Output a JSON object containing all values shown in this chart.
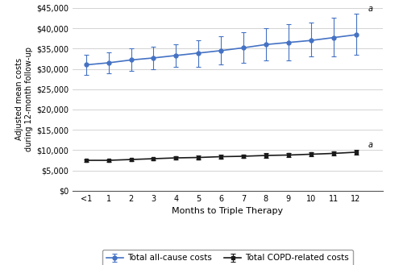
{
  "x_labels": [
    "<1",
    "1",
    "2",
    "3",
    "4",
    "5",
    "6",
    "7",
    "8",
    "9",
    "10",
    "11",
    "12"
  ],
  "x_values": [
    0,
    1,
    2,
    3,
    4,
    5,
    6,
    7,
    8,
    9,
    10,
    11,
    12
  ],
  "blue_mean": [
    31000,
    31500,
    32200,
    32700,
    33300,
    33900,
    34500,
    35200,
    36000,
    36500,
    37000,
    37700,
    38400
  ],
  "blue_lower": [
    28500,
    29000,
    29500,
    30000,
    30500,
    30500,
    31000,
    31500,
    32000,
    32000,
    33000,
    33000,
    33500
  ],
  "blue_upper": [
    33500,
    34000,
    35000,
    35500,
    36000,
    37000,
    38000,
    39000,
    40000,
    41000,
    41500,
    42500,
    43500
  ],
  "black_mean": [
    7500,
    7500,
    7700,
    7900,
    8100,
    8200,
    8400,
    8500,
    8700,
    8800,
    9000,
    9200,
    9500
  ],
  "black_lower": [
    7200,
    7200,
    7400,
    7600,
    7700,
    7800,
    8000,
    8100,
    8200,
    8300,
    8500,
    8700,
    8900
  ],
  "black_upper": [
    7800,
    7800,
    8000,
    8200,
    8500,
    8600,
    8800,
    8900,
    9200,
    9300,
    9500,
    9700,
    10100
  ],
  "blue_color": "#4472C4",
  "black_color": "#1a1a1a",
  "ylabel": "Adjusted mean costs\nduring 12-month follow-up",
  "xlabel": "Months to Triple Therapy",
  "ylim": [
    0,
    45000
  ],
  "ytick_step": 5000,
  "legend_blue": "Total all-cause costs",
  "legend_black": "Total COPD-related costs",
  "annotation": "a",
  "bg_color": "#ffffff",
  "xlim_left": -0.6,
  "xlim_right": 13.2
}
